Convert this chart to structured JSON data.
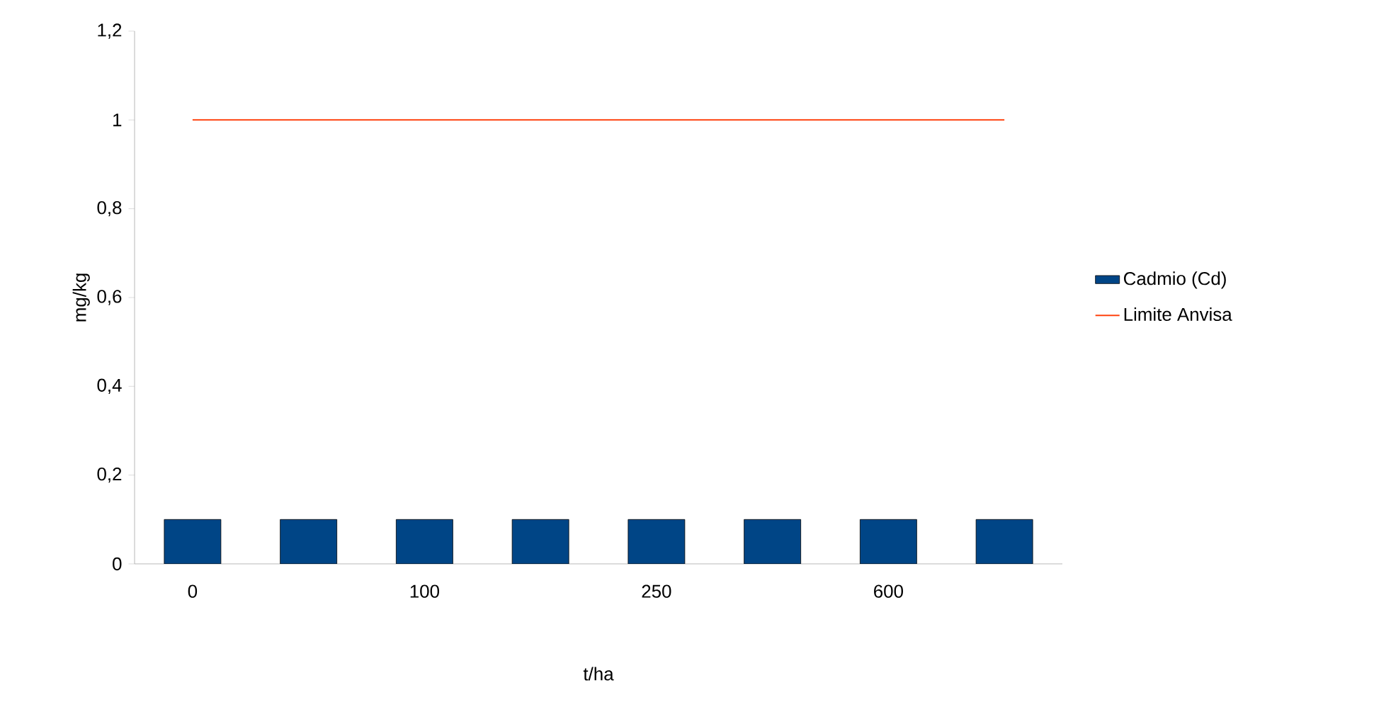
{
  "chart_data": {
    "type": "bar",
    "categories": [
      "0",
      null,
      "100",
      null,
      "250",
      null,
      "600",
      null
    ],
    "series": [
      {
        "name": "Cadmio (Cd)",
        "color": "#004586",
        "values": [
          0.1,
          0.1,
          0.1,
          0.1,
          0.1,
          0.1,
          0.1,
          0.1
        ]
      },
      {
        "name": "Limite Anvisa",
        "type": "line",
        "color": "#ff420e",
        "values": [
          1,
          1,
          1,
          1,
          1,
          1,
          1,
          1
        ]
      }
    ],
    "ylim": [
      0,
      1.2
    ],
    "yticks": [
      0,
      {
        "value": 0.2,
        "label": "0,2"
      },
      {
        "value": 0.4,
        "label": "0,4"
      },
      {
        "value": 0.6,
        "label": "0,6"
      },
      {
        "value": 0.8,
        "label": "0,8"
      },
      1,
      {
        "value": 1.2,
        "label": "1,2"
      }
    ],
    "xlabel": "t/ha",
    "ylabel": "mg/kg",
    "legend": "right"
  }
}
